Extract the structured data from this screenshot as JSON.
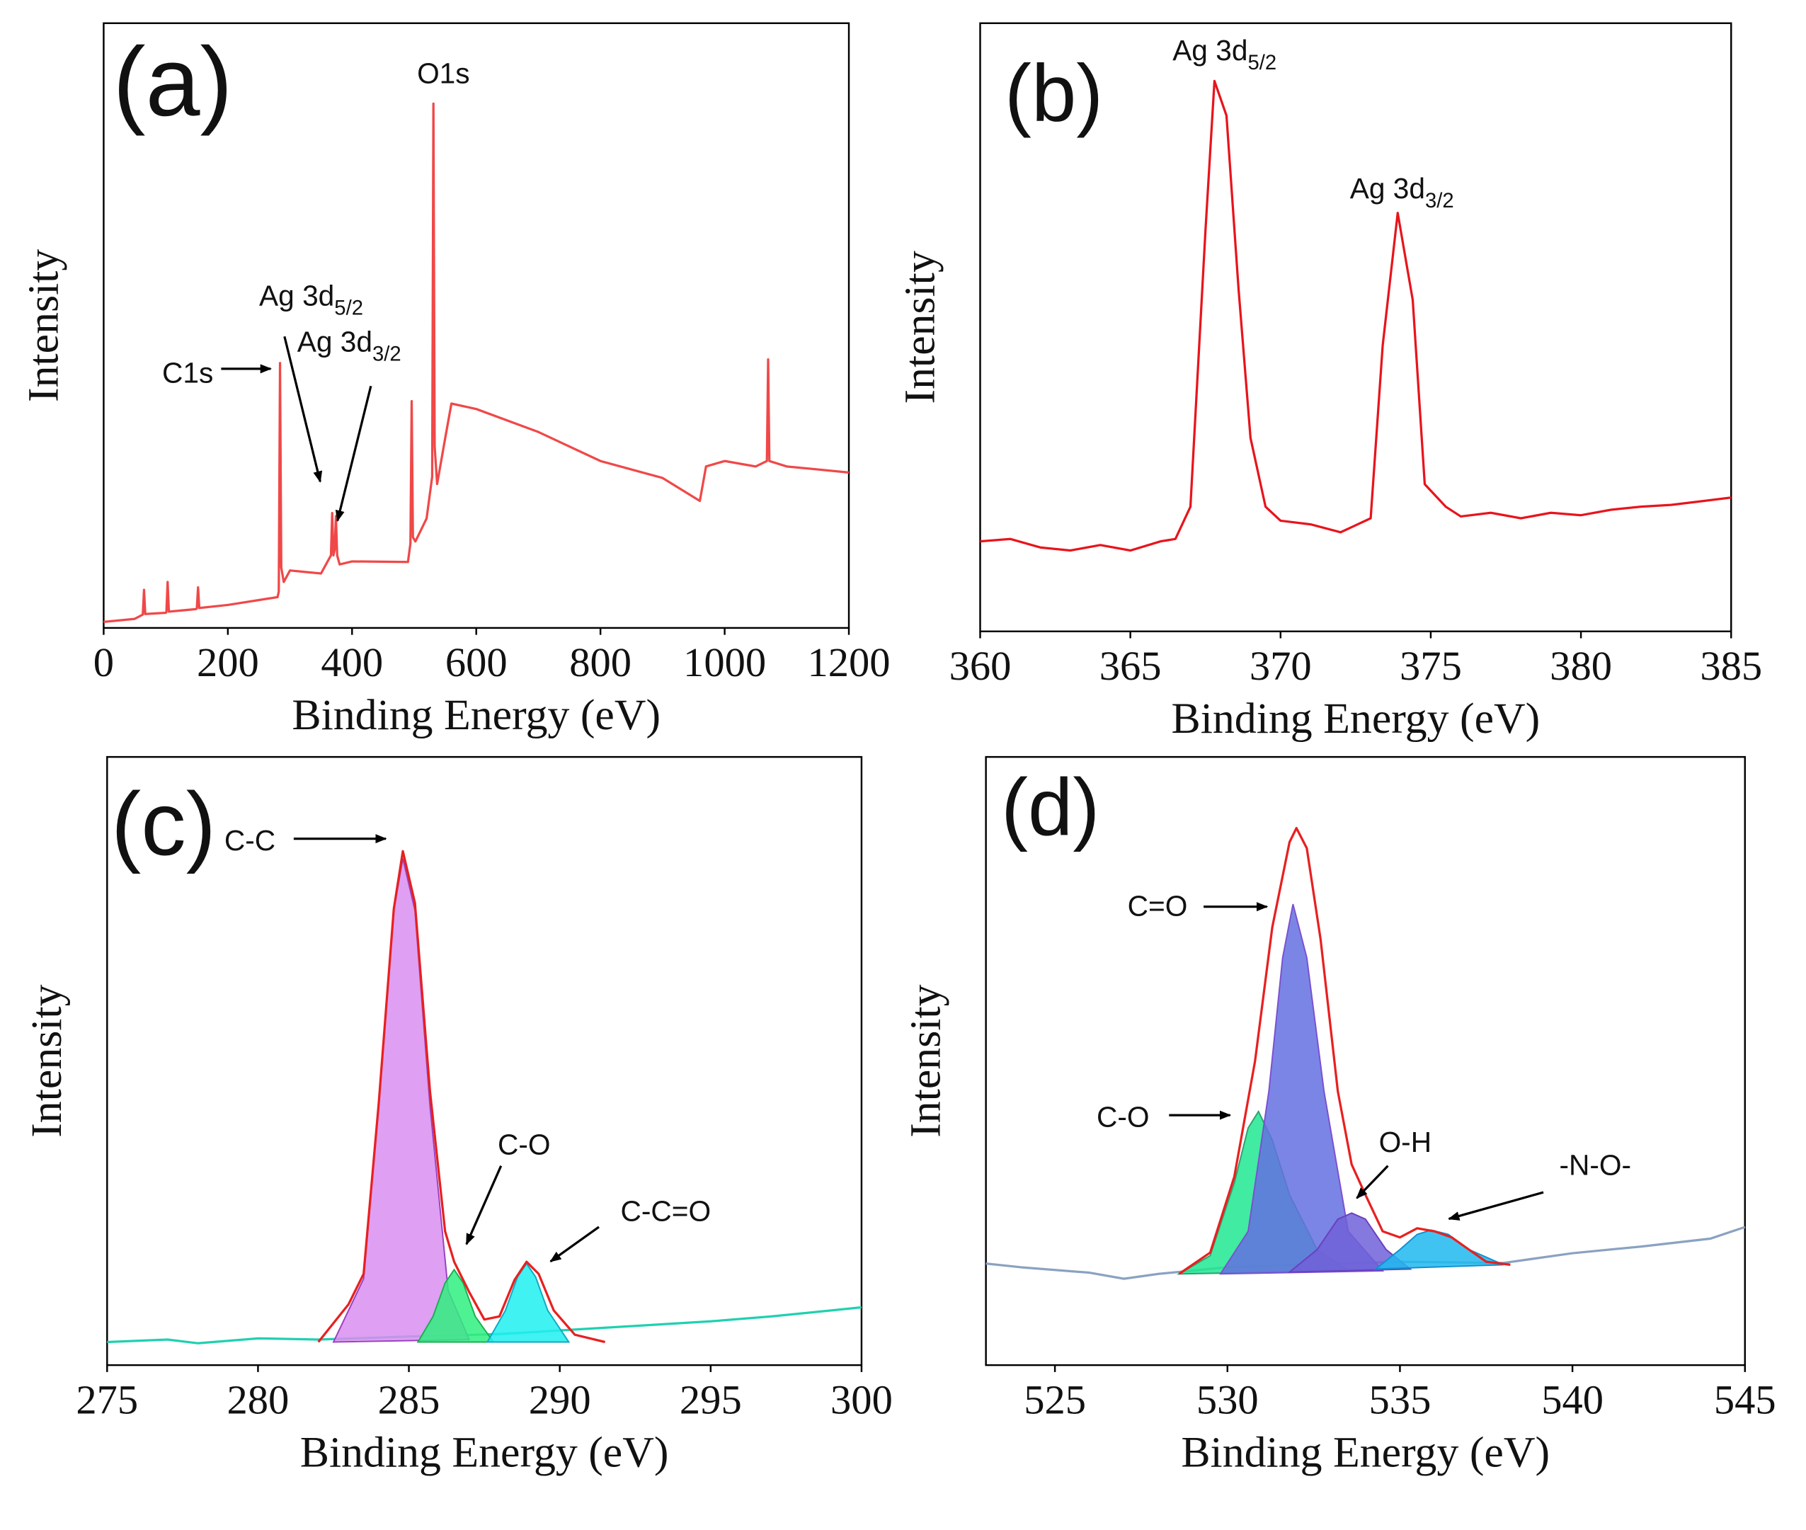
{
  "chart_data": [
    {
      "type": "line",
      "panel_label": "(a)",
      "xlabel": "Binding Energy (eV)",
      "ylabel": "Intensity",
      "xlim": [
        0,
        1200
      ],
      "ylim": [
        0,
        100
      ],
      "xticks": [
        0,
        200,
        400,
        600,
        800,
        1000,
        1200
      ],
      "annotations": [
        {
          "text": "O1s"
        },
        {
          "text": "C1s"
        },
        {
          "text": "Ag 3d",
          "sub": "5/2"
        },
        {
          "text": "Ag 3d",
          "sub": "3/2"
        }
      ],
      "series": [
        {
          "color": "#f04848",
          "x": [
            0,
            50,
            63,
            65,
            67,
            100,
            101,
            103,
            105,
            148,
            150,
            152,
            154,
            200,
            280,
            282,
            284,
            286,
            290,
            300,
            350,
            366,
            368,
            370,
            372,
            374,
            376,
            380,
            400,
            490,
            494,
            496,
            498,
            502,
            520,
            529,
            531,
            533,
            537,
            550,
            560,
            600,
            700,
            800,
            900,
            960,
            970,
            1000,
            1050,
            1068,
            1070,
            1072,
            1100,
            1200
          ],
          "values": [
            1,
            1.5,
            2.2,
            6.3,
            2.3,
            2.5,
            2.6,
            7.6,
            2.7,
            3.1,
            3.2,
            6.7,
            3.3,
            3.8,
            5.1,
            6,
            43.8,
            10,
            7.6,
            9.5,
            9,
            12,
            19,
            12,
            13,
            18.5,
            12,
            10.5,
            11,
            10.9,
            14,
            37.5,
            15,
            14.3,
            18.1,
            25,
            86.7,
            30,
            23.8,
            31.4,
            37.1,
            36.2,
            32.4,
            27.6,
            24.8,
            21,
            26.7,
            27.6,
            26.7,
            27.6,
            44.4,
            27.6,
            26.7,
            25.7
          ]
        }
      ]
    },
    {
      "type": "line",
      "panel_label": "(b)",
      "xlabel": "Binding Energy (eV)",
      "ylabel": "Intensity",
      "xlim": [
        360,
        385
      ],
      "ylim": [
        0,
        100
      ],
      "xticks": [
        360,
        365,
        370,
        375,
        380,
        385
      ],
      "annotations": [
        {
          "text": "Ag 3d",
          "sub": "5/2"
        },
        {
          "text": "Ag 3d",
          "sub": "3/2"
        }
      ],
      "series": [
        {
          "color": "#e8141c",
          "x": [
            360,
            361,
            362,
            363,
            364,
            365,
            366,
            366.5,
            367,
            367.5,
            367.8,
            368.2,
            368.6,
            369,
            369.5,
            370,
            371,
            372,
            373,
            373.4,
            373.9,
            374.4,
            374.8,
            375.5,
            376,
            377,
            378,
            379,
            380,
            381,
            382,
            383,
            384,
            385
          ],
          "values": [
            14.8,
            15.2,
            13.8,
            13.3,
            14.2,
            13.3,
            14.8,
            15.2,
            20.5,
            65.9,
            90.5,
            84.8,
            56.4,
            31.8,
            20.5,
            18.2,
            17.6,
            16.3,
            18.6,
            47,
            68.8,
            54.5,
            24.2,
            20.5,
            18.9,
            19.5,
            18.6,
            19.5,
            19.1,
            20,
            20.5,
            20.8,
            21.4,
            22
          ]
        }
      ]
    },
    {
      "type": "line",
      "panel_label": "(c)",
      "xlabel": "Binding Energy (eV)",
      "ylabel": "Intensity",
      "xlim": [
        275,
        300
      ],
      "ylim": [
        0,
        100
      ],
      "xticks": [
        275,
        280,
        285,
        290,
        295,
        300
      ],
      "annotations": [
        {
          "text": "C-C"
        },
        {
          "text": "C-O"
        },
        {
          "text": "C-C=O"
        }
      ],
      "series": [
        {
          "color": "#20d0b0",
          "x": [
            275,
            277,
            278,
            280,
            282,
            285,
            288,
            290,
            292,
            295,
            297,
            300
          ],
          "values": [
            3.8,
            4.2,
            3.6,
            4.4,
            4.2,
            4.7,
            5.1,
            5.7,
            6.3,
            7.2,
            8,
            9.5
          ]
        },
        {
          "color": "#9a3fc0",
          "fill": "#d98ef0",
          "x": [
            282.5,
            283.5,
            284,
            284.5,
            284.8,
            285.2,
            285.7,
            286.3,
            287
          ],
          "values": [
            3.8,
            14.2,
            42.6,
            74.8,
            83.3,
            74.8,
            42.6,
            12.3,
            4.2
          ]
        },
        {
          "color": "#18b050",
          "fill": "#30f080",
          "x": [
            285.3,
            285.8,
            286.2,
            286.5,
            286.8,
            287.2,
            287.8
          ],
          "values": [
            3.8,
            8,
            13.5,
            15.7,
            13.5,
            8,
            3.8
          ]
        },
        {
          "color": "#10a8c0",
          "fill": "#20f0f0",
          "x": [
            287.6,
            288.2,
            288.6,
            288.9,
            289.2,
            289.6,
            290.3
          ],
          "values": [
            3.8,
            9,
            14.5,
            16.7,
            14.5,
            9,
            3.8
          ]
        },
        {
          "color": "#e82020",
          "x": [
            282,
            283,
            283.5,
            284,
            284.5,
            284.8,
            285.2,
            285.7,
            286.2,
            286.5,
            287,
            287.5,
            288,
            288.5,
            288.9,
            289.3,
            289.8,
            290.5,
            291.5
          ],
          "values": [
            3.8,
            10,
            15,
            43,
            75,
            84.5,
            76,
            45,
            22,
            17,
            12,
            7.5,
            8,
            14,
            17,
            15,
            9,
            5,
            3.8
          ]
        }
      ]
    },
    {
      "type": "line",
      "panel_label": "(d)",
      "xlabel": "Binding Energy (eV)",
      "ylabel": "Intensity",
      "xlim": [
        523,
        545
      ],
      "ylim": [
        0,
        100
      ],
      "xticks": [
        525,
        530,
        535,
        540,
        545
      ],
      "annotations": [
        {
          "text": "C=O"
        },
        {
          "text": "C-O"
        },
        {
          "text": "O-H"
        },
        {
          "text": "-N-O-"
        }
      ],
      "series": [
        {
          "color": "#8aa2c0",
          "x": [
            523,
            524,
            526,
            527,
            528,
            530,
            535,
            538,
            540,
            542,
            544,
            545
          ],
          "values": [
            16.7,
            16.1,
            15.2,
            14.2,
            15,
            16.1,
            17,
            16.8,
            18.4,
            19.5,
            20.8,
            22.7
          ]
        },
        {
          "color": "#2fa070",
          "fill": "#20e890",
          "x": [
            528.6,
            529.5,
            530.2,
            530.6,
            530.9,
            531.3,
            531.8,
            532.6,
            533.5
          ],
          "values": [
            15,
            18,
            30,
            39,
            41.7,
            37,
            28,
            19,
            15.5
          ]
        },
        {
          "color": "#7a50d0",
          "fill": "#6470e0",
          "x": [
            529.8,
            530.6,
            531.2,
            531.6,
            531.9,
            532.3,
            532.8,
            533.5,
            534.5
          ],
          "values": [
            15,
            22,
            45,
            67,
            75.8,
            67,
            45,
            22,
            15.5
          ]
        },
        {
          "color": "#6a40c0",
          "fill": "#7060d8",
          "x": [
            531.8,
            532.6,
            533.2,
            533.6,
            534,
            534.6,
            535.3
          ],
          "values": [
            15.3,
            19,
            24,
            25,
            24,
            19,
            15.8
          ]
        },
        {
          "color": "#1090d0",
          "fill": "#20b8f0",
          "x": [
            534.3,
            535,
            535.5,
            535.9,
            536.4,
            537,
            538
          ],
          "values": [
            15.8,
            19,
            21.5,
            22.2,
            21.5,
            19,
            16.5
          ]
        },
        {
          "color": "#e82020",
          "x": [
            528.6,
            529.5,
            530.2,
            530.8,
            531.3,
            531.8,
            532,
            532.3,
            532.7,
            533.2,
            533.6,
            534,
            534.5,
            535,
            535.5,
            536,
            536.5,
            537,
            537.5,
            538.2
          ],
          "values": [
            15,
            18.5,
            31,
            50,
            72,
            86,
            88.3,
            85,
            70,
            45,
            33,
            28,
            22,
            21,
            22.5,
            22,
            21,
            19,
            17,
            16.5
          ]
        }
      ]
    }
  ]
}
